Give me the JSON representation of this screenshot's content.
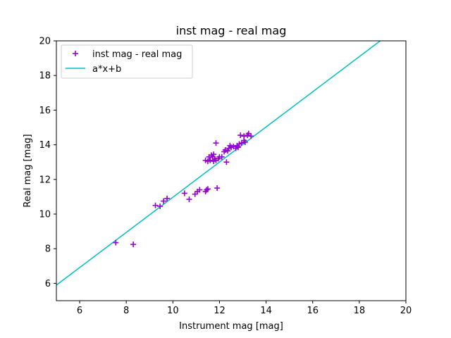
{
  "chart_data": {
    "type": "scatter",
    "title": "inst mag - real mag",
    "xlabel": "Instrument mag [mag]",
    "ylabel": "Real mag [mag]",
    "xlim": [
      5,
      20
    ],
    "ylim": [
      5,
      20
    ],
    "xticks": [
      6,
      8,
      10,
      12,
      14,
      16,
      18,
      20
    ],
    "yticks": [
      6,
      8,
      10,
      12,
      14,
      16,
      18,
      20
    ],
    "legend_position": "top-left",
    "grid": false,
    "series": [
      {
        "name": "inst mag - real mag",
        "kind": "scatter",
        "marker": "+",
        "color": "#9400D3",
        "points": [
          [
            7.55,
            8.35
          ],
          [
            8.3,
            8.25
          ],
          [
            9.25,
            10.5
          ],
          [
            9.45,
            10.45
          ],
          [
            9.6,
            10.75
          ],
          [
            9.75,
            10.9
          ],
          [
            10.5,
            11.2
          ],
          [
            10.7,
            10.85
          ],
          [
            10.95,
            11.15
          ],
          [
            11.05,
            11.3
          ],
          [
            11.15,
            11.4
          ],
          [
            11.4,
            11.3
          ],
          [
            11.45,
            11.4
          ],
          [
            11.5,
            11.45
          ],
          [
            11.9,
            11.5
          ],
          [
            11.4,
            13.1
          ],
          [
            11.5,
            13.05
          ],
          [
            11.55,
            13.3
          ],
          [
            11.6,
            13.1
          ],
          [
            11.65,
            13.4
          ],
          [
            11.7,
            13.3
          ],
          [
            11.75,
            13.05
          ],
          [
            11.75,
            13.45
          ],
          [
            11.8,
            13.2
          ],
          [
            11.85,
            13.1
          ],
          [
            11.85,
            14.1
          ],
          [
            11.95,
            13.2
          ],
          [
            12.0,
            13.3
          ],
          [
            12.1,
            13.3
          ],
          [
            12.2,
            13.6
          ],
          [
            12.25,
            13.7
          ],
          [
            12.3,
            13.0
          ],
          [
            12.35,
            13.65
          ],
          [
            12.4,
            13.8
          ],
          [
            12.45,
            13.95
          ],
          [
            12.5,
            13.85
          ],
          [
            12.6,
            13.9
          ],
          [
            12.7,
            13.8
          ],
          [
            12.75,
            13.95
          ],
          [
            12.8,
            13.85
          ],
          [
            12.85,
            14.05
          ],
          [
            12.9,
            14.55
          ],
          [
            12.95,
            14.1
          ],
          [
            13.05,
            14.25
          ],
          [
            13.05,
            14.5
          ],
          [
            13.1,
            14.15
          ],
          [
            13.2,
            14.55
          ],
          [
            13.25,
            14.65
          ],
          [
            13.35,
            14.5
          ]
        ]
      },
      {
        "name": "a*x+b",
        "kind": "line",
        "color": "#00BFBF",
        "x": [
          5,
          18.9
        ],
        "y": [
          5.9,
          20.0
        ]
      }
    ]
  }
}
